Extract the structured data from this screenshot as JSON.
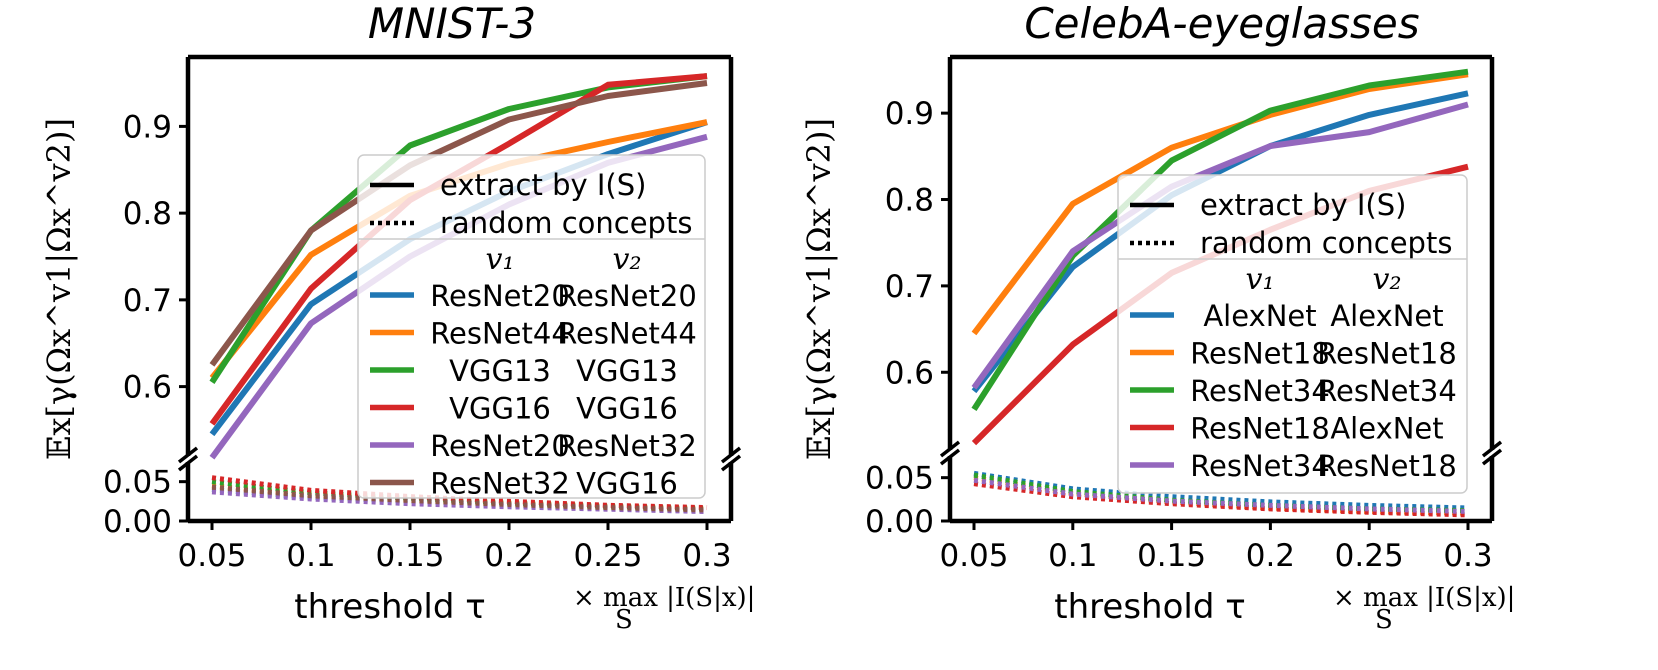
{
  "chart_data": [
    {
      "type": "line",
      "title": "MNIST-3",
      "xlabel": "threshold τ",
      "x_multiplier_note": "× max |I(S|x)|",
      "x_multiplier_sub": "S",
      "ylabel": "𝔼x[γ(Ωx^v1|Ωx^v2)]",
      "x": [
        0.05,
        0.1,
        0.15,
        0.2,
        0.25,
        0.3
      ],
      "x_tick_labels": [
        "0.05",
        "0.1",
        "0.15",
        "0.2",
        "0.25",
        "0.3"
      ],
      "y_upper_range": [
        0.52,
        0.98
      ],
      "y_upper_ticks": [
        0.6,
        0.7,
        0.8,
        0.9
      ],
      "y_upper_tick_labels": [
        "0.6",
        "0.7",
        "0.8",
        "0.9"
      ],
      "y_lower_range": [
        0.0,
        0.075
      ],
      "y_lower_ticks": [
        0.0,
        0.05
      ],
      "y_lower_tick_labels": [
        "0.00",
        "0.05"
      ],
      "axis_break": true,
      "legend": {
        "placement": "center-right",
        "style_entries": [
          {
            "label": "extract by I(S)",
            "style": "solid"
          },
          {
            "label": "random concepts",
            "style": "dotted"
          }
        ],
        "col1_header": "v₁",
        "col2_header": "v₂"
      },
      "series": [
        {
          "v1": "ResNet20",
          "v2": "ResNet20",
          "color": "#1f77b4",
          "extract": [
            0.545,
            0.695,
            0.77,
            0.825,
            0.868,
            0.905
          ],
          "random": [
            0.04,
            0.03,
            0.025,
            0.02,
            0.016,
            0.013
          ]
        },
        {
          "v1": "ResNet44",
          "v2": "ResNet44",
          "color": "#ff7f0e",
          "extract": [
            0.61,
            0.752,
            0.82,
            0.857,
            0.882,
            0.905
          ],
          "random": [
            0.045,
            0.033,
            0.027,
            0.022,
            0.018,
            0.015
          ]
        },
        {
          "v1": "VGG13",
          "v2": "VGG13",
          "color": "#2ca02c",
          "extract": [
            0.605,
            0.78,
            0.878,
            0.92,
            0.945,
            0.958
          ],
          "random": [
            0.05,
            0.036,
            0.029,
            0.023,
            0.019,
            0.016
          ]
        },
        {
          "v1": "VGG16",
          "v2": "VGG16",
          "color": "#d62728",
          "extract": [
            0.557,
            0.713,
            0.815,
            0.88,
            0.948,
            0.958
          ],
          "random": [
            0.055,
            0.039,
            0.031,
            0.025,
            0.02,
            0.017
          ]
        },
        {
          "v1": "ResNet20",
          "v2": "ResNet32",
          "color": "#9467bd",
          "extract": [
            0.518,
            0.673,
            0.75,
            0.81,
            0.858,
            0.888
          ],
          "random": [
            0.037,
            0.028,
            0.022,
            0.018,
            0.015,
            0.012
          ]
        },
        {
          "v1": "ResNet32",
          "v2": "VGG16",
          "color": "#8c564b",
          "extract": [
            0.625,
            0.78,
            0.855,
            0.908,
            0.935,
            0.95
          ],
          "random": [
            0.043,
            0.032,
            0.026,
            0.021,
            0.017,
            0.014
          ]
        }
      ]
    },
    {
      "type": "line",
      "title": "CelebA-eyeglasses",
      "xlabel": "threshold τ",
      "x_multiplier_note": "× max |I(S|x)|",
      "x_multiplier_sub": "S",
      "ylabel": "𝔼x[γ(Ωx^v1|Ωx^v2)]",
      "x": [
        0.05,
        0.1,
        0.15,
        0.2,
        0.25,
        0.3
      ],
      "x_tick_labels": [
        "0.05",
        "0.1",
        "0.15",
        "0.2",
        "0.25",
        "0.3"
      ],
      "y_upper_range": [
        0.51,
        0.965
      ],
      "y_upper_ticks": [
        0.6,
        0.7,
        0.8,
        0.9
      ],
      "y_upper_tick_labels": [
        "0.6",
        "0.7",
        "0.8",
        "0.9"
      ],
      "y_lower_range": [
        0.0,
        0.075
      ],
      "y_lower_ticks": [
        0.0,
        0.05
      ],
      "y_lower_tick_labels": [
        "0.00",
        "0.05"
      ],
      "axis_break": true,
      "legend": {
        "placement": "lower-right",
        "style_entries": [
          {
            "label": "extract by I(S)",
            "style": "solid"
          },
          {
            "label": "random concepts",
            "style": "dotted"
          }
        ],
        "col1_header": "v₁",
        "col2_header": "v₂"
      },
      "series": [
        {
          "v1": "AlexNet",
          "v2": "AlexNet",
          "color": "#1f77b4",
          "extract": [
            0.578,
            0.722,
            0.805,
            0.862,
            0.898,
            0.923
          ],
          "random": [
            0.055,
            0.037,
            0.028,
            0.022,
            0.018,
            0.015
          ]
        },
        {
          "v1": "ResNet18",
          "v2": "ResNet18",
          "color": "#ff7f0e",
          "extract": [
            0.645,
            0.795,
            0.86,
            0.898,
            0.928,
            0.945
          ],
          "random": [
            0.05,
            0.032,
            0.022,
            0.015,
            0.011,
            0.009
          ]
        },
        {
          "v1": "ResNet34",
          "v2": "ResNet34",
          "color": "#2ca02c",
          "extract": [
            0.557,
            0.735,
            0.845,
            0.903,
            0.932,
            0.948
          ],
          "random": [
            0.053,
            0.034,
            0.024,
            0.018,
            0.014,
            0.012
          ]
        },
        {
          "v1": "ResNet18",
          "v2": "AlexNet",
          "color": "#d62728",
          "extract": [
            0.518,
            0.632,
            0.715,
            0.765,
            0.81,
            0.838
          ],
          "random": [
            0.043,
            0.028,
            0.02,
            0.014,
            0.01,
            0.007
          ]
        },
        {
          "v1": "ResNet34",
          "v2": "ResNet18",
          "color": "#9467bd",
          "extract": [
            0.582,
            0.74,
            0.815,
            0.862,
            0.878,
            0.91
          ],
          "random": [
            0.047,
            0.031,
            0.023,
            0.018,
            0.014,
            0.011
          ]
        }
      ]
    }
  ]
}
